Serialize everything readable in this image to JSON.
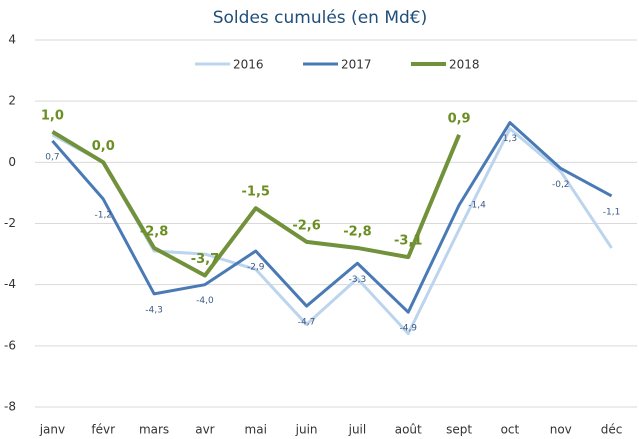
{
  "chart_data": {
    "type": "line",
    "subtitle": "Soldes cumulés (en Md€)",
    "categories": [
      "janv",
      "févr",
      "mars",
      "avr",
      "mai",
      "juin",
      "juil",
      "août",
      "sept",
      "oct",
      "nov",
      "déc"
    ],
    "series": [
      {
        "name": "2016",
        "color": "#bcd4ee",
        "values": [
          0.9,
          0.0,
          -2.9,
          -3.0,
          -3.5,
          -5.3,
          -3.8,
          -5.6,
          -2.2,
          1.1,
          -0.3,
          -2.8
        ]
      },
      {
        "name": "2017",
        "color": "#4a7ab5",
        "values": [
          0.7,
          -1.2,
          -4.3,
          -4.0,
          -2.9,
          -4.7,
          -3.3,
          -4.9,
          -1.4,
          1.3,
          -0.2,
          -1.1
        ],
        "value_labels": [
          "0,7",
          "-1,2",
          "-4,3",
          "-4,0",
          "-2,9",
          "-4,7",
          "-3,3",
          "-4,9",
          "-1,4",
          "1,3",
          "-0,2",
          "-1,1"
        ]
      },
      {
        "name": "2018",
        "color": "#71923b",
        "values": [
          1.0,
          0.0,
          -2.8,
          -3.7,
          -1.5,
          -2.6,
          -2.8,
          -3.1,
          0.9,
          null,
          null,
          null
        ],
        "value_labels": [
          "1,0",
          "0,0",
          "-2,8",
          "-3,7",
          "-1,5",
          "-2,6",
          "-2,8",
          "-3,1",
          "0,9",
          null,
          null,
          null
        ]
      }
    ],
    "ylim": [
      -8,
      4
    ],
    "yticks": [
      -8,
      -6,
      -4,
      -2,
      0,
      2,
      4
    ],
    "grid": true,
    "legend": "top"
  }
}
